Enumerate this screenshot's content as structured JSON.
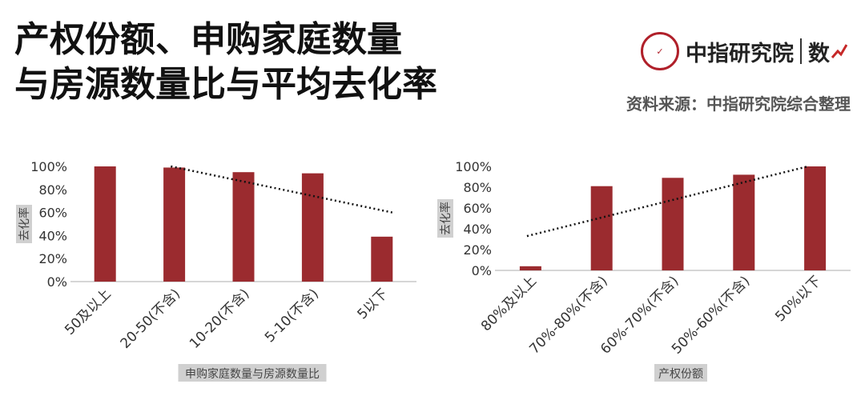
{
  "header": {
    "title_line1": "产权份额、申购家庭数量",
    "title_line2": "与房源数量比与平均去化率",
    "logo_name": "中指研究院",
    "logo_sub": "数",
    "source": "资料来源：中指研究院综合整理"
  },
  "colors": {
    "bar": "#9b2b2f",
    "trend": "#111111",
    "axis_label_bg": "#d0d0d0"
  },
  "chart_data": [
    {
      "type": "bar",
      "categories": [
        "50及以上",
        "20-50(不含)",
        "10-20(不含)",
        "5-10(不含)",
        "5以下"
      ],
      "values": [
        100,
        99,
        95,
        94,
        39
      ],
      "ylabel": "去化率",
      "xlabel": "申购家庭数量与房源数量比",
      "ylim": [
        0,
        100
      ],
      "yticks": [
        "0%",
        "20%",
        "40%",
        "60%",
        "80%",
        "100%"
      ],
      "trendline": {
        "style": "dotted",
        "start": 100,
        "end": 60
      }
    },
    {
      "type": "bar",
      "categories": [
        "80%及以上",
        "70%-80%(不含)",
        "60%-70%(不含)",
        "50%-60%(不含)",
        "50%以下"
      ],
      "values": [
        4,
        81,
        89,
        92,
        100
      ],
      "ylabel": "去化率",
      "xlabel": "产权份额",
      "ylim": [
        0,
        100
      ],
      "yticks": [
        "0%",
        "20%",
        "40%",
        "60%",
        "80%",
        "100%"
      ],
      "trendline": {
        "style": "dotted",
        "start": 33,
        "end": 100
      }
    }
  ]
}
